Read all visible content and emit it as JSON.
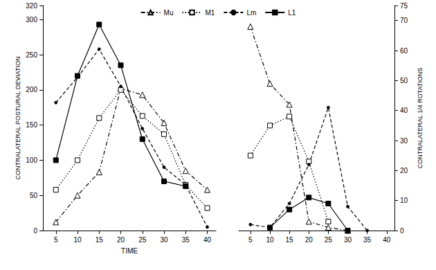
{
  "chart_data": [
    {
      "type": "line",
      "x_label": "TIME",
      "y_label": "CONTRALATERAL POSTURAL DEVIATION",
      "x": [
        5,
        10,
        15,
        20,
        25,
        30,
        35,
        40
      ],
      "xlim": [
        2,
        42
      ],
      "xticks": [
        5,
        10,
        15,
        20,
        25,
        30,
        35,
        40
      ],
      "ylim": [
        0,
        320
      ],
      "yticks": [
        50,
        100,
        150,
        200,
        250,
        300
      ],
      "grid": false,
      "legend": "top",
      "series": [
        {
          "name": "Mu",
          "color": "#000000",
          "marker": "triangle-open",
          "line_style": "dash-dot",
          "values": [
            12,
            50,
            83,
            202,
            193,
            153,
            85,
            58
          ]
        },
        {
          "name": "M1",
          "color": "#000000",
          "marker": "square-open",
          "line_style": "dotted",
          "values": [
            58,
            100,
            160,
            200,
            163,
            137,
            65,
            32
          ]
        },
        {
          "name": "Lm",
          "color": "#000000",
          "marker": "dot",
          "line_style": "dashed",
          "values": [
            182,
            218,
            258,
            205,
            145,
            90,
            65,
            5
          ]
        },
        {
          "name": "L1",
          "color": "#000000",
          "marker": "square-filled",
          "line_style": "solid",
          "values": [
            100,
            220,
            293,
            235,
            130,
            70,
            63,
            null
          ]
        }
      ]
    },
    {
      "type": "line",
      "y_label": "CONTRALATERAL 1/4 ROTATIONS",
      "x": [
        5,
        10,
        15,
        20,
        25,
        30,
        35,
        40
      ],
      "xlim": [
        2,
        42
      ],
      "xticks": [
        5,
        10,
        15,
        20,
        25,
        30,
        35,
        40
      ],
      "ylim": [
        0,
        75
      ],
      "yticks": [
        10,
        20,
        30,
        40,
        50,
        60
      ],
      "grid": false,
      "series": [
        {
          "name": "Mu",
          "color": "#000000",
          "marker": "triangle-open",
          "line_style": "dash-dot",
          "values": [
            68,
            49,
            42,
            3,
            1,
            0,
            null,
            null
          ]
        },
        {
          "name": "M1",
          "color": "#000000",
          "marker": "square-open",
          "line_style": "dotted",
          "values": [
            25,
            35,
            38,
            23,
            3,
            null,
            null,
            null
          ]
        },
        {
          "name": "Lm",
          "color": "#000000",
          "marker": "dot",
          "line_style": "dashed",
          "values": [
            2,
            1,
            9,
            22,
            41,
            8,
            0,
            null
          ]
        },
        {
          "name": "L1",
          "color": "#000000",
          "marker": "square-filled",
          "line_style": "solid",
          "values": [
            null,
            1,
            7,
            11,
            9,
            0,
            null,
            null
          ]
        }
      ]
    }
  ]
}
